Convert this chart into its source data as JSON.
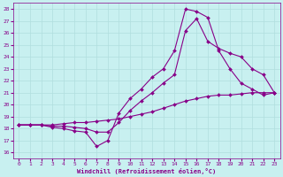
{
  "xlabel": "Windchill (Refroidissement éolien,°C)",
  "ylabel": "",
  "bg_color": "#c8f0f0",
  "grid_color": "#b0dede",
  "line_color": "#880088",
  "marker": "D",
  "marker_size": 2,
  "line_width": 0.8,
  "x_ticks": [
    0,
    1,
    2,
    3,
    4,
    5,
    6,
    7,
    8,
    9,
    10,
    11,
    12,
    13,
    14,
    15,
    16,
    17,
    18,
    19,
    20,
    21,
    22,
    23
  ],
  "xlim": [
    -0.5,
    23.5
  ],
  "ylim": [
    15.5,
    28.5
  ],
  "y_ticks": [
    16,
    17,
    18,
    19,
    20,
    21,
    22,
    23,
    24,
    25,
    26,
    27,
    28
  ],
  "series1": {
    "x": [
      0,
      1,
      2,
      3,
      4,
      5,
      6,
      7,
      8,
      9,
      10,
      11,
      12,
      13,
      14,
      15,
      16,
      17,
      18,
      19,
      20,
      21,
      22,
      23
    ],
    "y": [
      18.3,
      18.3,
      18.3,
      18.1,
      18.0,
      17.8,
      17.7,
      16.5,
      17.0,
      19.3,
      20.5,
      21.3,
      22.3,
      23.0,
      24.5,
      28.0,
      27.8,
      27.3,
      24.5,
      23.0,
      21.8,
      21.3,
      20.8,
      21.0
    ]
  },
  "series2": {
    "x": [
      0,
      1,
      2,
      3,
      4,
      5,
      6,
      7,
      8,
      9,
      10,
      11,
      12,
      13,
      14,
      15,
      16,
      17,
      18,
      19,
      20,
      21,
      22,
      23
    ],
    "y": [
      18.3,
      18.3,
      18.3,
      18.2,
      18.2,
      18.1,
      18.0,
      17.7,
      17.7,
      18.5,
      19.5,
      20.3,
      21.0,
      21.8,
      22.5,
      26.2,
      27.2,
      25.3,
      24.7,
      24.3,
      24.0,
      23.0,
      22.5,
      21.0
    ]
  },
  "series3": {
    "x": [
      0,
      1,
      2,
      3,
      4,
      5,
      6,
      7,
      8,
      9,
      10,
      11,
      12,
      13,
      14,
      15,
      16,
      17,
      18,
      19,
      20,
      21,
      22,
      23
    ],
    "y": [
      18.3,
      18.3,
      18.3,
      18.3,
      18.4,
      18.5,
      18.5,
      18.6,
      18.7,
      18.8,
      19.0,
      19.2,
      19.4,
      19.7,
      20.0,
      20.3,
      20.5,
      20.7,
      20.8,
      20.8,
      20.9,
      21.0,
      21.0,
      21.0
    ]
  }
}
